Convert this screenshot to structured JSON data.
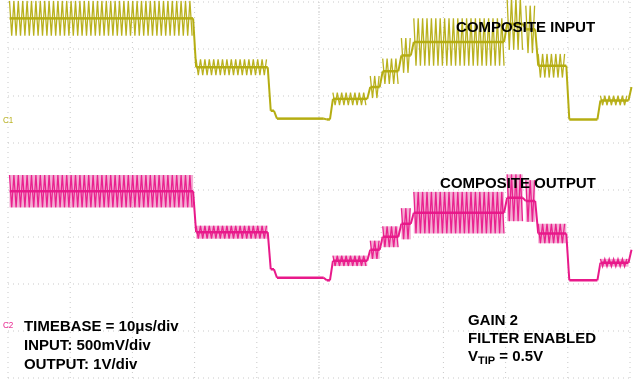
{
  "chart_data": {
    "type": "line",
    "title": "",
    "xlabel": "",
    "ylabel": "",
    "grid": true,
    "grid_divisions": {
      "x": 10,
      "y": 8
    },
    "x": [
      0,
      3,
      4.2,
      4.3,
      5.1,
      5.2,
      5.8,
      6,
      6.3,
      6.5,
      8,
      8.3,
      8.5,
      9,
      9.5,
      10
    ],
    "series": [
      {
        "name": "COMPOSITE INPUT",
        "channel": "C1",
        "color": "#b5ad12",
        "levels": [
          0.92,
          0.3,
          -0.25,
          -0.35,
          -0.36,
          -0.1,
          0.05,
          0.25,
          0.45,
          0.62,
          0.85,
          0.78,
          0.32,
          -0.36,
          -0.12,
          0.05
        ],
        "burst": [
          0.22,
          0.1,
          0.0,
          0.0,
          0.0,
          0.08,
          0.14,
          0.16,
          0.22,
          0.3,
          0.33,
          0.3,
          0.15,
          0.0,
          0.06,
          0.1
        ]
      },
      {
        "name": "COMPOSITE OUTPUT",
        "channel": "C2",
        "color": "#e8198a",
        "levels": [
          0.95,
          0.32,
          -0.25,
          -0.38,
          -0.42,
          -0.12,
          0.05,
          0.25,
          0.45,
          0.62,
          0.85,
          0.8,
          0.3,
          -0.42,
          -0.15,
          0.05
        ],
        "burst": [
          0.25,
          0.1,
          0.0,
          0.0,
          0.0,
          0.08,
          0.14,
          0.16,
          0.24,
          0.32,
          0.36,
          0.32,
          0.15,
          0.0,
          0.06,
          0.1
        ]
      }
    ],
    "annotations": {
      "input": "COMPOSITE INPUT",
      "output": "COMPOSITE OUTPUT",
      "timebase": "TIMEBASE = 10μs/div",
      "input_scale": "INPUT: 500mV/div",
      "output_scale": "OUTPUT: 1V/div",
      "gain": "GAIN 2",
      "filter": "FILTER ENABLED",
      "vtip_base": "V",
      "vtip_sub": "TIP",
      "vtip_value": " = 0.5V"
    },
    "channel_markers": [
      "C1",
      "C2"
    ]
  },
  "colors": {
    "grid": "#c9c9c9",
    "input": "#b5ad12",
    "output": "#e8198a",
    "output_fill": "#f09ac8"
  }
}
